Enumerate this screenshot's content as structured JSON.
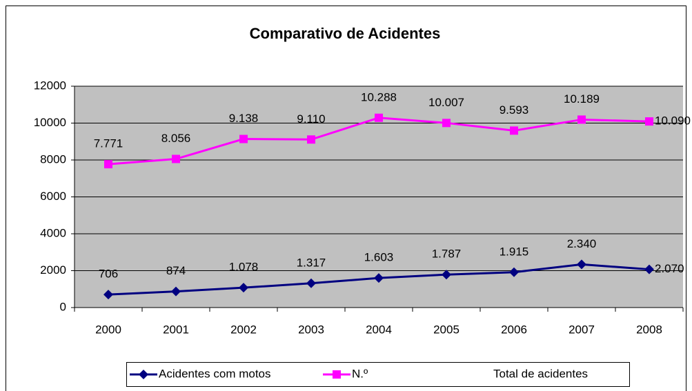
{
  "chart_data": {
    "type": "line",
    "title": "Comparativo de Acidentes",
    "categories": [
      "2000",
      "2001",
      "2002",
      "2003",
      "2004",
      "2005",
      "2006",
      "2007",
      "2008"
    ],
    "series": [
      {
        "name": "Acidentes com motos",
        "color": "#000080",
        "marker": "diamond",
        "values": [
          706,
          874,
          1078,
          1317,
          1603,
          1787,
          1915,
          2340,
          2070
        ],
        "value_labels": [
          "706",
          "874",
          "1.078",
          "1.317",
          "1.603",
          "1.787",
          "1.915",
          "2.340",
          "2.070"
        ]
      },
      {
        "name": "N.º",
        "color": "#ff00ff",
        "marker": "square",
        "values": [
          7771,
          8056,
          9138,
          9110,
          10288,
          10007,
          9593,
          10189,
          10090
        ],
        "value_labels": [
          "7.771",
          "8.056",
          "9.138",
          "9.110",
          "10.288",
          "10.007",
          "9.593",
          "10.189",
          "10.090"
        ]
      }
    ],
    "legend_extra": "Total de acidentes",
    "ylim": [
      0,
      12000
    ],
    "yticks": [
      0,
      2000,
      4000,
      6000,
      8000,
      10000,
      12000
    ],
    "grid": true,
    "legend": "bottom",
    "plot_background": "#c0c0c0"
  }
}
